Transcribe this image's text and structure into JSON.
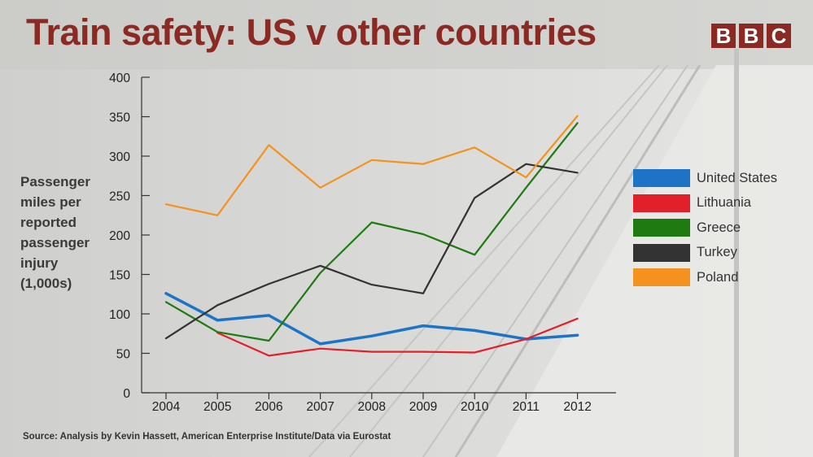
{
  "header": {
    "title": "Train safety: US v other countries",
    "logo_letters": [
      "B",
      "B",
      "C"
    ]
  },
  "source_note": "Source: Analysis by Kevin Hassett, American Enterprise Institute/Data via Eurostat",
  "colors": {
    "title": "#8a2a23",
    "axis": "#333333"
  },
  "chart_data": {
    "type": "line",
    "title": "Train safety: US v other countries",
    "ylabel": "Passenger miles per reported passenger injury (1,000s)",
    "xlabel": "",
    "x": [
      "2004",
      "2005",
      "2006",
      "2007",
      "2008",
      "2009",
      "2010",
      "2011",
      "2012"
    ],
    "ylim": [
      0,
      400
    ],
    "yticks": [
      0,
      50,
      100,
      150,
      200,
      250,
      300,
      350,
      400
    ],
    "grid": false,
    "legend_position": "right",
    "series": [
      {
        "name": "United States",
        "color": "#1d73c6",
        "values": [
          126,
          92,
          98,
          62,
          72,
          85,
          79,
          68,
          73
        ]
      },
      {
        "name": "Lithuania",
        "color": "#e2202b",
        "values": [
          null,
          76,
          47,
          56,
          52,
          52,
          51,
          68,
          94
        ]
      },
      {
        "name": "Greece",
        "color": "#1f7a12",
        "values": [
          115,
          77,
          66,
          152,
          216,
          201,
          175,
          260,
          342
        ]
      },
      {
        "name": "Turkey",
        "color": "#333333",
        "values": [
          69,
          111,
          138,
          161,
          137,
          126,
          247,
          290,
          279
        ]
      },
      {
        "name": "Poland",
        "color": "#f3921f",
        "values": [
          239,
          225,
          314,
          260,
          295,
          290,
          311,
          273,
          351
        ]
      }
    ]
  }
}
